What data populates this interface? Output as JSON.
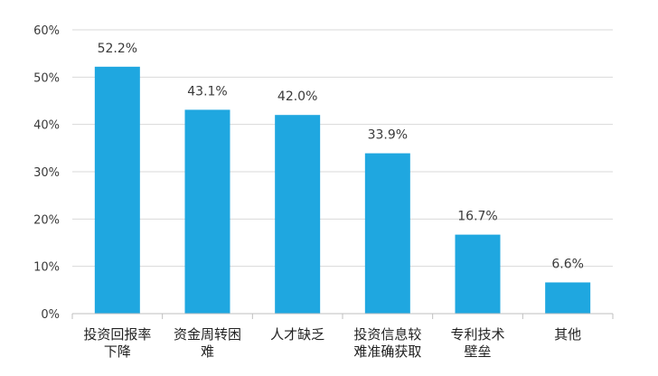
{
  "chart_data": {
    "type": "bar",
    "categories": [
      [
        "投资回报率",
        "下降"
      ],
      [
        "资金周转困",
        "难"
      ],
      [
        "人才缺乏"
      ],
      [
        "投资信息较",
        "难准确获取"
      ],
      [
        "专利技术",
        "壁垒"
      ],
      [
        "其他"
      ]
    ],
    "values": [
      52.2,
      43.1,
      42.0,
      33.9,
      16.7,
      6.6
    ],
    "data_labels": [
      "52.2%",
      "43.1%",
      "42.0%",
      "33.9%",
      "16.7%",
      "6.6%"
    ],
    "y_ticks": [
      "0%",
      "10%",
      "20%",
      "30%",
      "40%",
      "50%",
      "60%"
    ],
    "ylim": [
      0,
      60
    ],
    "bar_color": "#1fa7e0",
    "grid": true,
    "title": "",
    "xlabel": "",
    "ylabel": ""
  }
}
